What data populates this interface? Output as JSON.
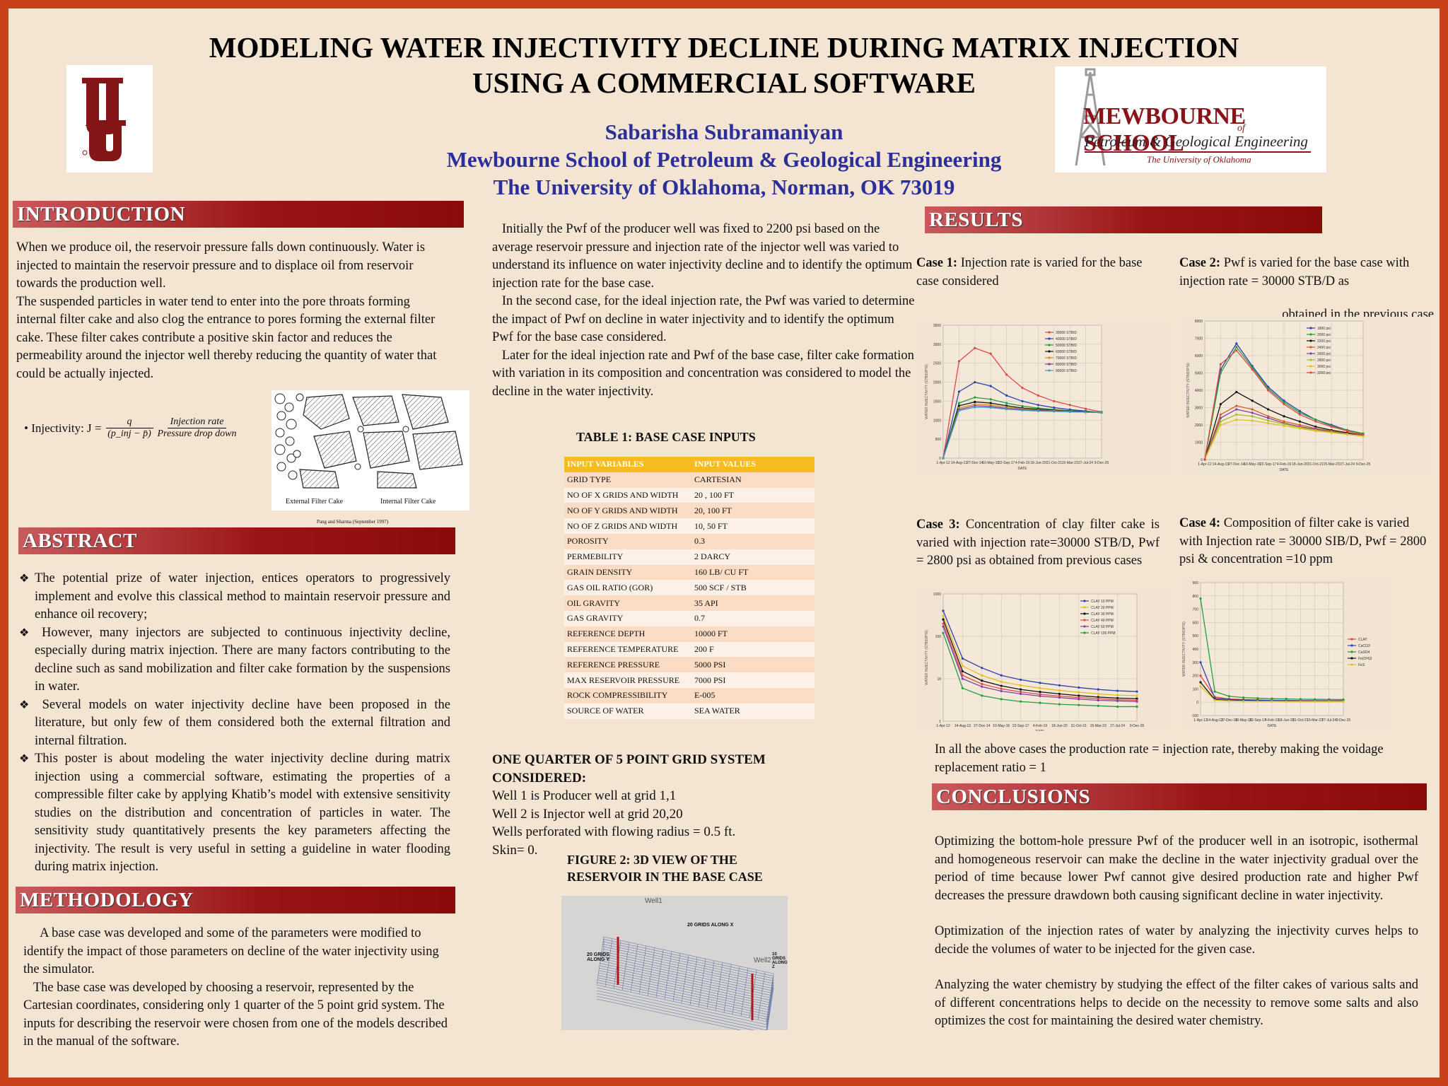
{
  "title_line1": "MODELING WATER INJECTIVITY DECLINE DURING MATRIX INJECTION",
  "title_line2": "USING A COMMERCIAL SOFTWARE",
  "author": "Sabarisha Subramaniyan",
  "affiliation1": "Mewbourne School of Petroleum & Geological Engineering",
  "affiliation2": "The University of Oklahoma, Norman, OK 73019",
  "logo_right": {
    "line1": "MEWBOURNE SCHOOL",
    "of": "of",
    "line2": "Petroleum & Geological Engineering",
    "line3": "The University of Oklahoma"
  },
  "intro": {
    "heading": "INTRODUCTION",
    "p1": "When we produce oil, the reservoir pressure falls down continuously. Water is injected to maintain the reservoir pressure and to displace oil from reservoir towards the production well.",
    "p2": "The suspended particles in water tend to enter into the pore throats forming internal filter cake and also clog the entrance to pores forming the external filter cake. These filter cakes contribute a positive skin factor and reduces the permeability around the injector well thereby reducing the quantity of water that could be actually injected.",
    "formula_prefix": "• Injectivity: J =",
    "formula_num1": "q",
    "formula_den1": "(p_inj − p̄)",
    "formula_num2": "Injection rate",
    "formula_den2": "Pressure drop down",
    "fig_label_ext": "External Filter Cake",
    "fig_label_int": "Internal Filter Cake",
    "fig_caption": "Pang and Sharma (September 1997)"
  },
  "abstract": {
    "heading": "ABSTRACT",
    "b1": "The potential prize of water injection, entices operators to progressively implement and evolve this classical method to maintain reservoir pressure and enhance oil recovery;",
    "b2": " However, many injectors are subjected to continuous injectivity decline,   especially during matrix injection. There are many factors contributing to the decline such as sand mobilization and filter cake formation by the suspensions in water.",
    "b3": " Several models on water injectivity decline have been proposed in the literature,     but only few of them considered both the external filtration and internal filtration.",
    "b4": "This poster is about modeling the water injectivity decline during matrix injection using a commercial software, estimating the properties of a compressible filter cake by applying Khatib’s model with extensive sensitivity studies on the distribution and concentration of particles in water.   The sensitivity study quantitatively presents the key parameters affecting the injectivity. The result is very useful in setting a guideline in water flooding during matrix injection."
  },
  "methodology": {
    "heading": "METHODOLOGY",
    "p1": "     A base case was developed and some of the parameters were modified to identify the impact of those parameters on decline of the water injectivity using the simulator.",
    "p2": "   The base case was developed by choosing a reservoir, represented by the Cartesian coordinates, considering only 1 quarter of the 5 point grid system. The inputs for describing the reservoir were chosen from one of the models described in the manual of the software."
  },
  "middle": {
    "p1": "   Initially the Pwf of the producer well was fixed to 2200 psi based on the average reservoir pressure and injection rate of the injector well was varied to understand its influence on water injectivity decline and to identify the optimum injection rate for the base case.",
    "p2": "   In the second case, for the ideal injection rate, the Pwf was varied to determine the impact of Pwf on decline in water injectivity and to identify the optimum Pwf for the base case considered.",
    "p3": "   Later for the ideal injection rate and Pwf of the base case, filter cake formation with variation in its composition and concentration was considered to model the decline in the water injectivity.",
    "table_title": "TABLE 1: BASE CASE INPUTS",
    "table_header": [
      "INPUT VARIABLES",
      "INPUT VALUES"
    ],
    "table_rows": [
      [
        "GRID TYPE",
        "CARTESIAN"
      ],
      [
        "NO OF X GRIDS AND WIDTH",
        "20 , 100 FT"
      ],
      [
        "NO OF Y GRIDS AND WIDTH",
        "20, 100 FT"
      ],
      [
        "NO OF Z GRIDS AND WIDTH",
        "10, 50 FT"
      ],
      [
        "POROSITY",
        "0.3"
      ],
      [
        "PERMEBILITY",
        "2 DARCY"
      ],
      [
        "GRAIN DENSITY",
        "160 LB/ CU FT"
      ],
      [
        "GAS OIL RATIO (GOR)",
        "500 SCF / STB"
      ],
      [
        "OIL GRAVITY",
        "35 API"
      ],
      [
        "GAS GRAVITY",
        "0.7"
      ],
      [
        "REFERENCE DEPTH",
        "10000 FT"
      ],
      [
        "REFERENCE TEMPERATURE",
        "200 F"
      ],
      [
        "REFERENCE PRESSURE",
        "5000 PSI"
      ],
      [
        "MAX RESERVOIR PRESSURE",
        "7000 PSI"
      ],
      [
        "ROCK COMPRESSIBILITY",
        "E-005"
      ],
      [
        "SOURCE OF WATER",
        "SEA WATER"
      ]
    ],
    "grid_title1": "ONE QUARTER OF 5 POINT GRID SYSTEM",
    "grid_title2": "CONSIDERED:",
    "grid_l1": "Well 1 is  Producer well at grid 1,1",
    "grid_l2": "Well 2 is Injector well at grid 20,20",
    "grid_l3": "Wells perforated with flowing radius = 0.5 ft.",
    "grid_l4": "Skin= 0.",
    "fig2_title1": "FIGURE 2: 3D VIEW OF THE",
    "fig2_title2": "RESERVOIR IN THE BASE CASE",
    "fig2_well1": "Well1",
    "fig2_well2": "Well2",
    "fig2_xlabel": "20 GRIDS ALONG X",
    "fig2_ylabel": "20 GRIDS ALONG Y",
    "fig2_zlabel": "10 GRIDS ALONG Z"
  },
  "results": {
    "heading": "RESULTS",
    "case1_bold": "Case 1:",
    "case1_text": " Injection rate is varied for the base case considered",
    "case2_bold": "Case 2:",
    "case2_text": " Pwf is varied for the base case with injection rate = 30000 STB/D as",
    "case2_text2": "obtained in the previous case",
    "case3_bold": "Case 3:",
    "case3_text": " Concentration of clay filter cake is varied with injection rate=30000 STB/D, Pwf = 2800 psi as obtained from previous cases",
    "case4_bold": "Case 4:",
    "case4_text": " Composition of filter cake is varied with Injection rate = 30000 SIB/D, Pwf = 2800 psi & concentration =10 ppm",
    "note": "In all the above cases the production rate = injection rate, thereby making the voidage replacement ratio = 1"
  },
  "conclusions": {
    "heading": "CONCLUSIONS",
    "p1": "Optimizing the bottom-hole pressure Pwf of the producer well in an isotropic, isothermal and homogeneous reservoir can make the decline in the water injectivity gradual over the period of time because lower Pwf cannot give desired production rate and higher Pwf decreases the pressure drawdown both causing significant decline in water injectivity.",
    "p2": "Optimization of the injection rates of water by analyzing the injectivity curves helps to decide the volumes of water to be injected for the given case.",
    "p3": "Analyzing the water chemistry by studying the effect of the filter cakes of various salts and of different concentrations helps to decide on the necessity to remove some salts and also optimizes the cost for maintaining the desired water chemistry."
  },
  "chart_data": [
    {
      "type": "line",
      "ylabel": "WATER INJECTIVITY (STB/D/PSI)",
      "xlabel": "DATE",
      "x": [
        "1-Apr-12",
        "14-Aug-13",
        "27-Dec-14",
        "10-May-16",
        "22-Sep-17",
        "4-Feb-19",
        "18-Jun-20",
        "31-Oct-21",
        "15-Mar-23",
        "27-Jul-24",
        "9-Dec-25"
      ],
      "yticks": [
        "0",
        "500",
        "1000",
        "1500",
        "2000",
        "2500",
        "3000",
        "3500"
      ],
      "ylim": [
        0,
        3500
      ],
      "series": [
        {
          "name": "30000 STB/D",
          "color": "#e04848",
          "values": [
            0,
            2550,
            2900,
            2750,
            2200,
            1850,
            1650,
            1500,
            1400,
            1300,
            1220
          ]
        },
        {
          "name": "40000 STB/D",
          "color": "#3040b0",
          "values": [
            0,
            1750,
            2000,
            1900,
            1650,
            1500,
            1400,
            1330,
            1280,
            1240,
            1200
          ]
        },
        {
          "name": "50000 STB/D",
          "color": "#20a040",
          "values": [
            0,
            1450,
            1600,
            1550,
            1450,
            1370,
            1320,
            1280,
            1250,
            1230,
            1210
          ]
        },
        {
          "name": "60000 STB/D",
          "color": "#111111",
          "values": [
            0,
            1380,
            1480,
            1450,
            1380,
            1320,
            1290,
            1260,
            1240,
            1220,
            1200
          ]
        },
        {
          "name": "70000 STB/D",
          "color": "#d09020",
          "values": [
            0,
            1320,
            1420,
            1400,
            1340,
            1300,
            1270,
            1250,
            1230,
            1210,
            1200
          ]
        },
        {
          "name": "80000 STB/D",
          "color": "#8040a0",
          "values": [
            0,
            1280,
            1380,
            1360,
            1310,
            1280,
            1260,
            1240,
            1220,
            1210,
            1200
          ]
        },
        {
          "name": "90000 STB/D",
          "color": "#40a0c0",
          "values": [
            0,
            1250,
            1340,
            1330,
            1290,
            1260,
            1240,
            1230,
            1220,
            1210,
            1200
          ]
        }
      ]
    },
    {
      "type": "line",
      "ylabel": "WATER INJECTIVITY (STB/D/PSI)",
      "xlabel": "DATE",
      "x": [
        "1-Apr-12",
        "14-Aug-13",
        "27-Dec-14",
        "10-May-16",
        "22-Sep-17",
        "4-Feb-19",
        "18-Jun-20",
        "31-Oct-21",
        "15-Mar-23",
        "27-Jul-24",
        "9-Dec-25"
      ],
      "yticks": [
        "0",
        "1000",
        "2000",
        "3000",
        "4000",
        "5000",
        "6000",
        "7000",
        "8000"
      ],
      "ylim": [
        0,
        8000
      ],
      "series": [
        {
          "name": "1800 psi",
          "color": "#3040b0",
          "values": [
            0,
            5200,
            6700,
            5400,
            4200,
            3400,
            2800,
            2300,
            2000,
            1700,
            1500
          ]
        },
        {
          "name": "2000 psi",
          "color": "#20a040",
          "values": [
            0,
            5000,
            6500,
            5300,
            4100,
            3300,
            2700,
            2300,
            1950,
            1700,
            1500
          ]
        },
        {
          "name": "2200 psi",
          "color": "#111111",
          "values": [
            0,
            3200,
            3900,
            3400,
            2900,
            2500,
            2200,
            1900,
            1700,
            1550,
            1400
          ]
        },
        {
          "name": "2400 psi",
          "color": "#d06020",
          "values": [
            0,
            2600,
            3100,
            2900,
            2500,
            2200,
            2000,
            1800,
            1650,
            1500,
            1400
          ]
        },
        {
          "name": "2600 psi",
          "color": "#8040a0",
          "values": [
            0,
            2400,
            2900,
            2700,
            2400,
            2100,
            1900,
            1750,
            1600,
            1480,
            1380
          ]
        },
        {
          "name": "2800 psi",
          "color": "#a0c020",
          "values": [
            0,
            2200,
            2600,
            2500,
            2250,
            2050,
            1850,
            1700,
            1580,
            1460,
            1360
          ]
        },
        {
          "name": "3000 psi",
          "color": "#e0c020",
          "values": [
            0,
            2000,
            2300,
            2250,
            2100,
            1950,
            1800,
            1650,
            1550,
            1450,
            1350
          ]
        },
        {
          "name": "3200 psi",
          "color": "#e04848",
          "values": [
            0,
            5500,
            6300,
            5200,
            4000,
            3200,
            2600,
            2200,
            1900,
            1650,
            1450
          ]
        }
      ]
    },
    {
      "type": "line",
      "ylabel": "WATER INJECTIVITY (STB/D/PSI)",
      "xlabel": "DATE",
      "log_scale": true,
      "x": [
        "1-Apr-12",
        "14-Aug-13",
        "27-Dec-14",
        "10-May-16",
        "22-Sep-17",
        "4-Feb-19",
        "18-Jun-20",
        "31-Oct-21",
        "15-Mar-23",
        "27-Jul-24",
        "9-Dec-25"
      ],
      "yticks": [
        "1",
        "10",
        "100",
        "1000"
      ],
      "ylim": [
        1,
        1000
      ],
      "series": [
        {
          "name": "CLAY 10 PPM",
          "color": "#3040b0",
          "values": [
            400,
            30,
            18,
            12,
            9.5,
            8,
            7,
            6.2,
            5.6,
            5.2,
            5
          ]
        },
        {
          "name": "CLAY 20 PPM",
          "color": "#e0c020",
          "values": [
            300,
            20,
            12,
            8.5,
            7,
            6,
            5.3,
            4.8,
            4.4,
            4.1,
            4
          ]
        },
        {
          "name": "CLAY 30 PPM",
          "color": "#111111",
          "values": [
            250,
            15,
            9,
            6.8,
            5.6,
            4.9,
            4.4,
            4,
            3.7,
            3.5,
            3.4
          ]
        },
        {
          "name": "CLAY 40 PPM",
          "color": "#e04848",
          "values": [
            200,
            12,
            7.5,
            5.8,
            4.9,
            4.3,
            3.9,
            3.6,
            3.4,
            3.2,
            3.1
          ]
        },
        {
          "name": "CLAY 50 PPM",
          "color": "#8040a0",
          "values": [
            170,
            10,
            6.5,
            5.1,
            4.4,
            3.9,
            3.6,
            3.3,
            3.1,
            3,
            2.9
          ]
        },
        {
          "name": "CLAY 100 PPM",
          "color": "#20a040",
          "values": [
            120,
            6,
            4,
            3.3,
            2.9,
            2.7,
            2.5,
            2.4,
            2.3,
            2.2,
            2.2
          ]
        }
      ]
    },
    {
      "type": "line",
      "ylabel": "WATER INJECTIVITY (STB/D/PSI)",
      "xlabel": "DATE",
      "x": [
        "1-Apr-12",
        "14-Aug-13",
        "27-Dec-14",
        "10-May-16",
        "22-Sep-17",
        "4-Feb-19",
        "18-Jun-20",
        "31-Oct-21",
        "15-Mar-23",
        "27-Jul-24",
        "9-Dec-25"
      ],
      "yticks": [
        "-100",
        "0",
        "100",
        "200",
        "300",
        "400",
        "500",
        "600",
        "700",
        "800",
        "900"
      ],
      "ylim": [
        -100,
        900
      ],
      "series": [
        {
          "name": "CLAY",
          "color": "#e04848",
          "values": [
            200,
            40,
            25,
            20,
            17,
            15,
            14,
            13,
            12,
            12,
            12
          ]
        },
        {
          "name": "CaCO3",
          "color": "#3040b0",
          "values": [
            300,
            30,
            20,
            16,
            14,
            13,
            12,
            11,
            11,
            10,
            10
          ]
        },
        {
          "name": "CaSO4",
          "color": "#20a040",
          "values": [
            780,
            80,
            45,
            35,
            30,
            27,
            25,
            23,
            22,
            21,
            20
          ]
        },
        {
          "name": "Fe(OH)3",
          "color": "#111111",
          "values": [
            150,
            20,
            12,
            10,
            9,
            8,
            8,
            7,
            7,
            7,
            7
          ]
        },
        {
          "name": "FeS",
          "color": "#e0c020",
          "values": [
            120,
            15,
            10,
            8,
            7,
            7,
            6,
            6,
            6,
            6,
            6
          ]
        }
      ]
    }
  ]
}
